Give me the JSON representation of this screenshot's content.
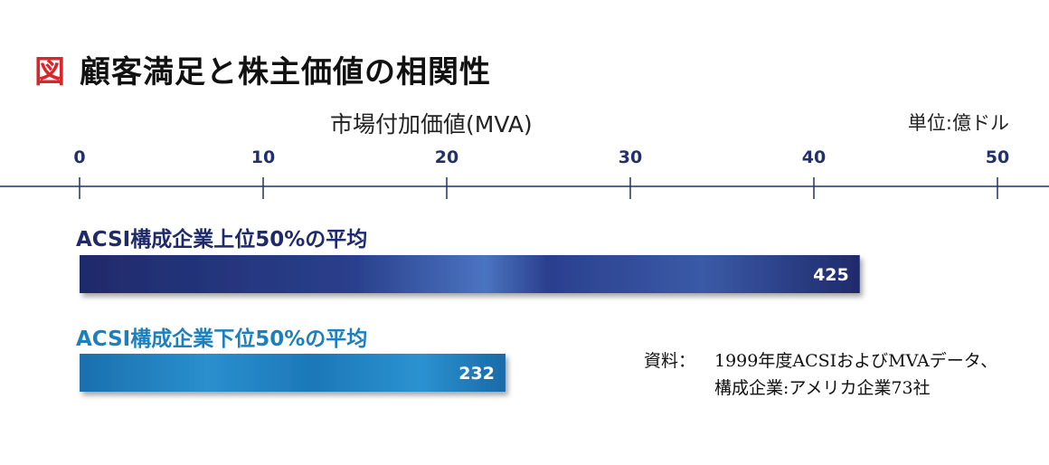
{
  "figure_mark": "図",
  "unit": "単位:億ドル",
  "source": {
    "label": "資料：",
    "line1": "1999年度ACSIおよびMVAデータ、",
    "line2": "構成企業:アメリカ企業73社"
  },
  "colors": {
    "axis": "#23306e",
    "top_series": "#1f2a6b",
    "bottom_series": "#1b80bd"
  },
  "chart_data": {
    "type": "bar",
    "orientation": "horizontal",
    "title": "顧客満足と株主価値の相関性",
    "xlabel": "市場付加価値(MVA)",
    "xlim": [
      0,
      50
    ],
    "ticks": [
      0,
      10,
      20,
      30,
      40,
      50
    ],
    "tick_labels": [
      "0",
      "10",
      "20",
      "30",
      "40",
      "50"
    ],
    "categories": [
      "ACSI構成企業上位50%の平均",
      "ACSI構成企業下位50%の平均"
    ],
    "values": [
      42.5,
      23.2
    ],
    "value_labels": [
      "425",
      "232"
    ],
    "grid": false,
    "legend": "none"
  }
}
